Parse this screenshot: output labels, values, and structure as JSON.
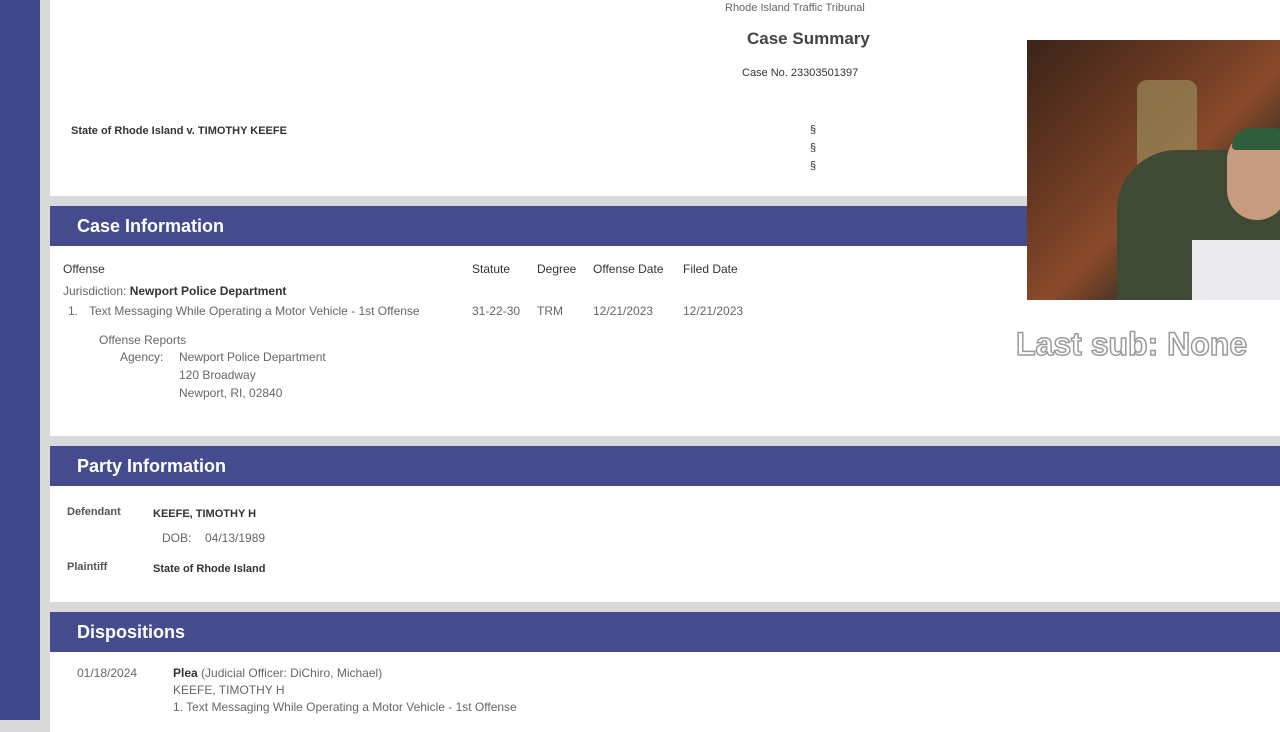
{
  "header": {
    "court": "Rhode Island Traffic Tribunal",
    "title": "Case Summary",
    "case_no": "Case No. 23303501397",
    "caption": "State of Rhode Island v. TIMOTHY KEEFE",
    "section_marks": [
      "§",
      "§",
      "§"
    ]
  },
  "case_info": {
    "title": "Case Information",
    "columns": [
      "Offense",
      "Statute",
      "Degree",
      "Offense Date",
      "Filed Date"
    ],
    "jurisdiction_label": "Jurisdiction:",
    "jurisdiction": "Newport Police Department",
    "offenses": [
      {
        "num": "1.",
        "offense": "Text Messaging While Operating a Motor Vehicle - 1st Offense",
        "statute": "31-22-30",
        "degree": "TRM",
        "offense_date": "12/21/2023",
        "filed_date": "12/21/2023"
      }
    ],
    "reports_label": "Offense Reports",
    "agency_label": "Agency:",
    "agency_lines": [
      "Newport Police Department",
      "120 Broadway",
      "Newport, RI, 02840"
    ]
  },
  "party_info": {
    "title": "Party Information",
    "defendant_label": "Defendant",
    "defendant": "KEEFE, TIMOTHY H",
    "dob_label": "DOB:",
    "dob": "04/13/1989",
    "plaintiff_label": "Plaintiff",
    "plaintiff": "State of Rhode Island"
  },
  "dispositions": {
    "title": "Dispositions",
    "date": "01/18/2024",
    "type": "Plea",
    "officer": "(Judicial Officer: DiChiro, Michael)",
    "party": "KEEFE, TIMOTHY H",
    "charge": "1. Text Messaging While Operating a Motor Vehicle - 1st Offense"
  },
  "overlay": {
    "last_sub": "Last sub: None"
  },
  "colors": {
    "sidebar": "#3f4a8c",
    "section_header": "#444c8d"
  }
}
